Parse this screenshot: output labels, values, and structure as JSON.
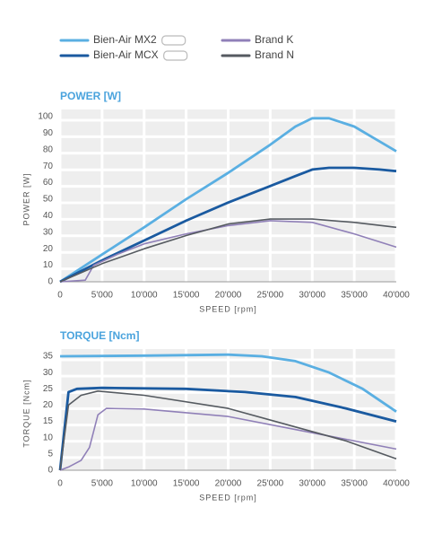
{
  "chart_data": [
    {
      "type": "line",
      "title": "POWER [W]",
      "xlabel": "SPEED [rpm]",
      "ylabel": "POWER [W]",
      "xlim": [
        0,
        40000
      ],
      "ylim": [
        0,
        100
      ],
      "xticks": [
        0,
        {
          "value": 5000,
          "label": "5'000"
        },
        {
          "value": 10000,
          "label": "10'000"
        },
        {
          "value": 15000,
          "label": "15'000"
        },
        {
          "value": 20000,
          "label": "20'000"
        },
        {
          "value": 25000,
          "label": "25'000"
        },
        {
          "value": 30000,
          "label": "30'000"
        },
        {
          "value": 35000,
          "label": "35'000"
        },
        {
          "value": 40000,
          "label": "40'000"
        }
      ],
      "yticks": [
        0,
        10,
        20,
        30,
        40,
        50,
        60,
        70,
        80,
        90,
        100
      ],
      "grid": true,
      "series": [
        {
          "name": "Bien-Air MX2",
          "color": "#5aafe2",
          "x": [
            0,
            5000,
            10000,
            15000,
            20000,
            25000,
            28000,
            30000,
            32000,
            35000,
            38000,
            40000
          ],
          "values": [
            0,
            16.5,
            33,
            50,
            66,
            83,
            94,
            99,
            99,
            94,
            85,
            79
          ]
        },
        {
          "name": "Bien-Air MCX",
          "color": "#1a5aa0",
          "x": [
            0,
            5000,
            10000,
            15000,
            20000,
            25000,
            28000,
            30000,
            32000,
            35000,
            38000,
            40000
          ],
          "values": [
            0,
            13,
            25,
            37,
            48,
            58,
            64,
            68,
            69,
            69,
            68,
            67
          ]
        },
        {
          "name": "Brand K",
          "color": "#9080b8",
          "x": [
            0,
            3000,
            4000,
            7000,
            10000,
            15000,
            20000,
            25000,
            30000,
            35000,
            40000
          ],
          "values": [
            0,
            1,
            10,
            17,
            23,
            29,
            34,
            37,
            36,
            29,
            21
          ]
        },
        {
          "name": "Brand N",
          "color": "#555a60",
          "x": [
            0,
            5000,
            10000,
            15000,
            20000,
            25000,
            30000,
            35000,
            40000
          ],
          "values": [
            0,
            11,
            20,
            28,
            35,
            38,
            38,
            36,
            33
          ]
        }
      ]
    },
    {
      "type": "line",
      "title": "TORQUE [Ncm]",
      "xlabel": "SPEED [rpm]",
      "ylabel": "TORQUE [Ncm]",
      "xlim": [
        0,
        40000
      ],
      "ylim": [
        0,
        35
      ],
      "xticks": [
        0,
        {
          "value": 5000,
          "label": "5'000"
        },
        {
          "value": 10000,
          "label": "10'000"
        },
        {
          "value": 15000,
          "label": "15'000"
        },
        {
          "value": 20000,
          "label": "20'000"
        },
        {
          "value": 25000,
          "label": "25'000"
        },
        {
          "value": 30000,
          "label": "30'000"
        },
        {
          "value": 35000,
          "label": "35'000"
        },
        {
          "value": 40000,
          "label": "40'000"
        }
      ],
      "yticks": [
        0,
        5,
        10,
        15,
        20,
        25,
        30,
        35
      ],
      "grid": true,
      "series": [
        {
          "color": "#5aafe2",
          "x": [
            0,
            10000,
            20000,
            24000,
            28000,
            32000,
            36000,
            40000
          ],
          "values": [
            35,
            35.2,
            35.5,
            35,
            33.5,
            30,
            25,
            18
          ]
        },
        {
          "color": "#1a5aa0",
          "x": [
            0,
            1000,
            2000,
            5000,
            15000,
            22000,
            28000,
            34000,
            40000
          ],
          "values": [
            0,
            24,
            25,
            25.3,
            25,
            24,
            22.5,
            19,
            15
          ]
        },
        {
          "color": "#9080b8",
          "x": [
            0,
            1000,
            2500,
            3500,
            4500,
            5500,
            10000,
            20000,
            27000,
            33000,
            40000
          ],
          "values": [
            0,
            1,
            3,
            7,
            17,
            19,
            18.8,
            16.5,
            13,
            10,
            6.5
          ]
        },
        {
          "color": "#555a60",
          "x": [
            0,
            1000,
            2500,
            4500,
            10000,
            20000,
            27000,
            34000,
            40000
          ],
          "values": [
            0,
            20,
            23,
            24.3,
            23,
            19,
            14,
            9,
            3.5
          ]
        }
      ]
    }
  ]
}
